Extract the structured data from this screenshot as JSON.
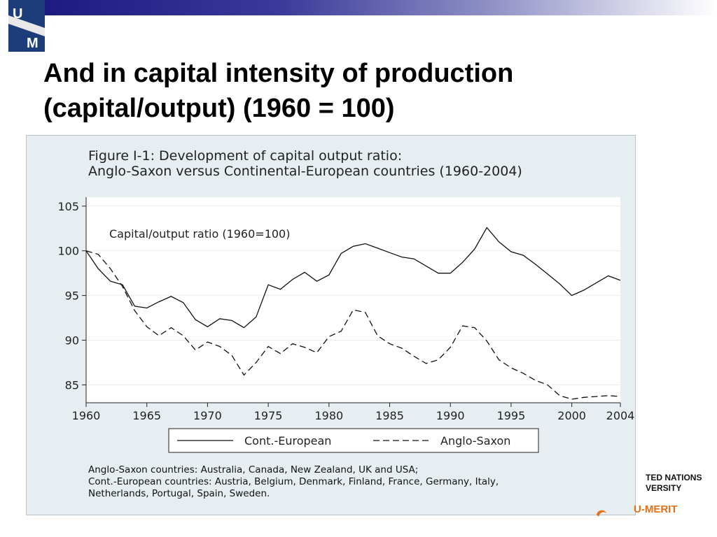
{
  "slide": {
    "title_line1": "And in capital intensity of production",
    "title_line2": "(capital/output) (1960 = 100)",
    "logo_letters": [
      "U",
      "M"
    ]
  },
  "figure": {
    "title_line1": "Figure I-1: Development of capital output ratio:",
    "title_line2": "Anglo-Saxon versus Continental-European countries (1960-2004)",
    "notes_line1": "Anglo-Saxon countries: Australia, Canada, New Zealand, UK and USA;",
    "notes_line2": "Cont.-European countries: Austria, Belgium, Denmark, Finland, France, Germany, Italy,",
    "notes_line3": "Netherlands, Portugal, Spain, Sweden."
  },
  "branding": {
    "un_line1": "TED NATIONS",
    "un_line2": "VERSITY",
    "merit": "U-MERIT",
    "accent_color": "#e0701a"
  },
  "chart_data": {
    "type": "line",
    "title": "Figure I-1: Development of capital output ratio: Anglo-Saxon versus Continental-European countries (1960-2004)",
    "annotation": "Capital/output ratio (1960=100)",
    "xlabel": "",
    "ylabel": "",
    "xlim": [
      1960,
      2004
    ],
    "ylim": [
      83,
      106
    ],
    "x_ticks": [
      1960,
      1965,
      1970,
      1975,
      1980,
      1985,
      1990,
      1995,
      2000,
      2004
    ],
    "y_ticks": [
      85,
      90,
      95,
      100,
      105
    ],
    "grid": "horizontal",
    "legend_position": "bottom",
    "x": [
      1960,
      1961,
      1962,
      1963,
      1964,
      1965,
      1966,
      1967,
      1968,
      1969,
      1970,
      1971,
      1972,
      1973,
      1974,
      1975,
      1976,
      1977,
      1978,
      1979,
      1980,
      1981,
      1982,
      1983,
      1984,
      1985,
      1986,
      1987,
      1988,
      1989,
      1990,
      1991,
      1992,
      1993,
      1994,
      1995,
      1996,
      1997,
      1998,
      1999,
      2000,
      2001,
      2002,
      2003,
      2004
    ],
    "series": [
      {
        "name": "Cont.-European",
        "style": "solid",
        "values": [
          100.0,
          98.0,
          96.6,
          96.2,
          93.8,
          93.6,
          94.3,
          94.9,
          94.2,
          92.3,
          91.5,
          92.4,
          92.2,
          91.4,
          92.6,
          96.2,
          95.7,
          96.8,
          97.6,
          96.6,
          97.3,
          99.7,
          100.5,
          100.8,
          100.3,
          99.8,
          99.3,
          99.1,
          98.3,
          97.5,
          97.5,
          98.7,
          100.2,
          102.6,
          101.0,
          99.9,
          99.5,
          98.5,
          97.4,
          96.3,
          95.0,
          95.6,
          96.4,
          97.2,
          96.7
        ]
      },
      {
        "name": "Anglo-Saxon",
        "style": "dashed",
        "values": [
          100.0,
          99.6,
          98.0,
          96.0,
          93.3,
          91.5,
          90.5,
          91.4,
          90.5,
          88.9,
          89.8,
          89.3,
          88.3,
          86.1,
          87.5,
          89.3,
          88.5,
          89.6,
          89.2,
          88.6,
          90.4,
          91.0,
          93.4,
          93.1,
          90.5,
          89.6,
          89.1,
          88.2,
          87.4,
          87.8,
          89.2,
          91.6,
          91.4,
          89.9,
          87.8,
          86.9,
          86.3,
          85.5,
          85.0,
          83.8,
          83.4,
          83.6,
          83.7,
          83.8,
          83.7
        ]
      }
    ]
  }
}
